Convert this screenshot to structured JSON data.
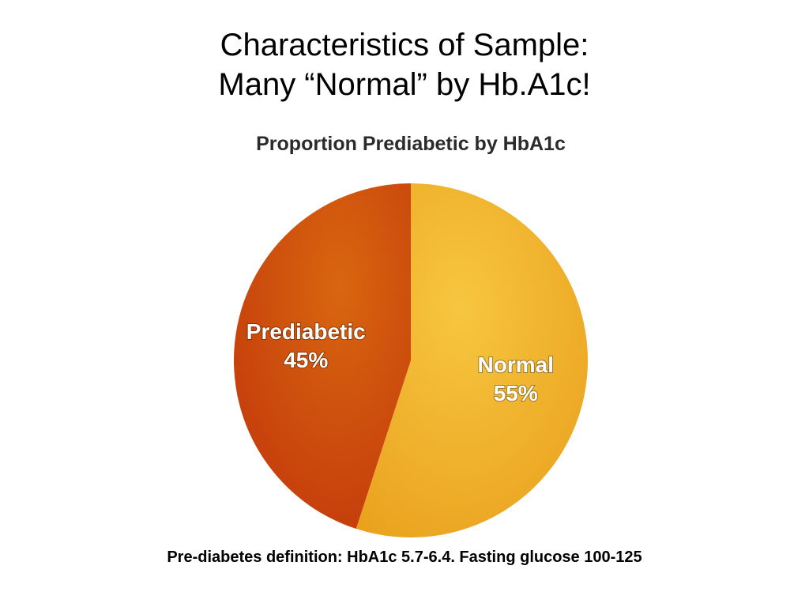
{
  "slide": {
    "title_line1": "Characteristics of Sample:",
    "title_line2": "Many “Normal” by Hb.A1c!",
    "footnote": "Pre-diabetes definition: HbA1c 5.7-6.4.  Fasting glucose 100-125"
  },
  "chart_data": {
    "type": "pie",
    "title": "Proportion Prediabetic by HbA1c",
    "slices": [
      {
        "label": "Normal",
        "value": 55,
        "value_label": "55%",
        "color": "#f2b22c"
      },
      {
        "label": "Prediabetic",
        "value": 45,
        "value_label": "45%",
        "color": "#d04a0e"
      }
    ]
  }
}
